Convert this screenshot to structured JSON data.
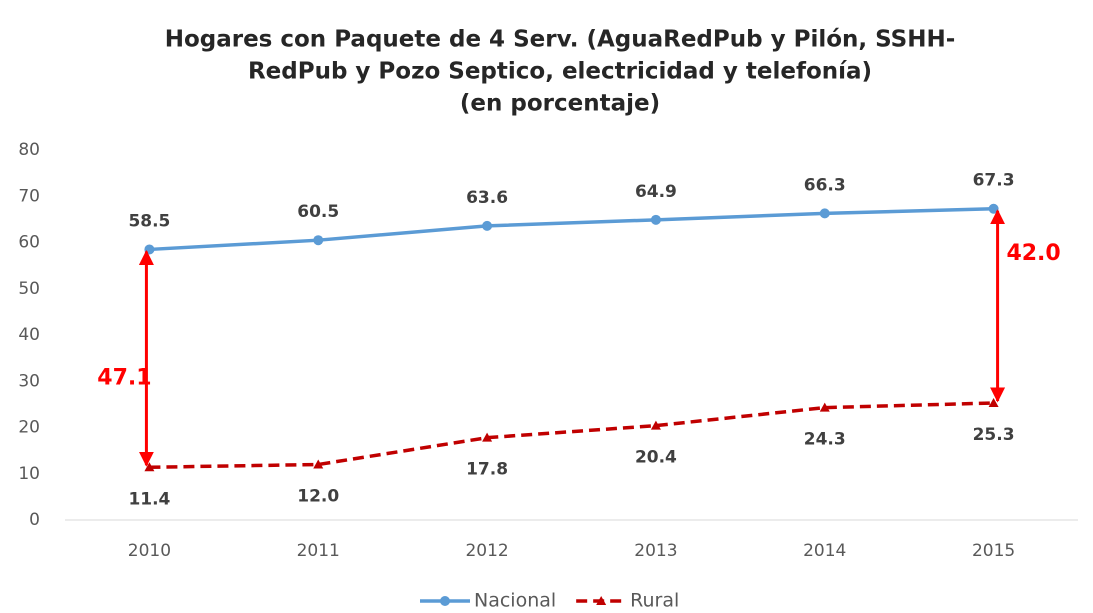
{
  "chart_data": {
    "type": "line",
    "title": [
      "Hogares con Paquete de 4 Serv. (AguaRedPub y Pilón, SSHH-",
      "RedPub y Pozo Septico, electricidad y telefonía)"
    ],
    "subtitle": "(en porcentaje)",
    "categories": [
      "2010",
      "2011",
      "2012",
      "2013",
      "2014",
      "2015"
    ],
    "series": [
      {
        "name": "Nacional",
        "color": "#5b9bd5",
        "values": [
          58.5,
          60.5,
          63.6,
          64.9,
          66.3,
          67.3
        ]
      },
      {
        "name": "Rural",
        "color": "#c00000",
        "values": [
          11.4,
          12.0,
          17.8,
          20.4,
          24.3,
          25.3
        ],
        "value_labels": [
          "11.4",
          "12.0",
          "17.8",
          "20.4",
          "24.3",
          "25.3"
        ]
      }
    ],
    "ylim": [
      0,
      80
    ],
    "yticks": [
      0,
      10,
      20,
      30,
      40,
      50,
      60,
      70,
      80
    ],
    "annotations": [
      "47.1",
      "42.0"
    ],
    "annotation_color": "#ff0000",
    "legend": "bottom"
  }
}
